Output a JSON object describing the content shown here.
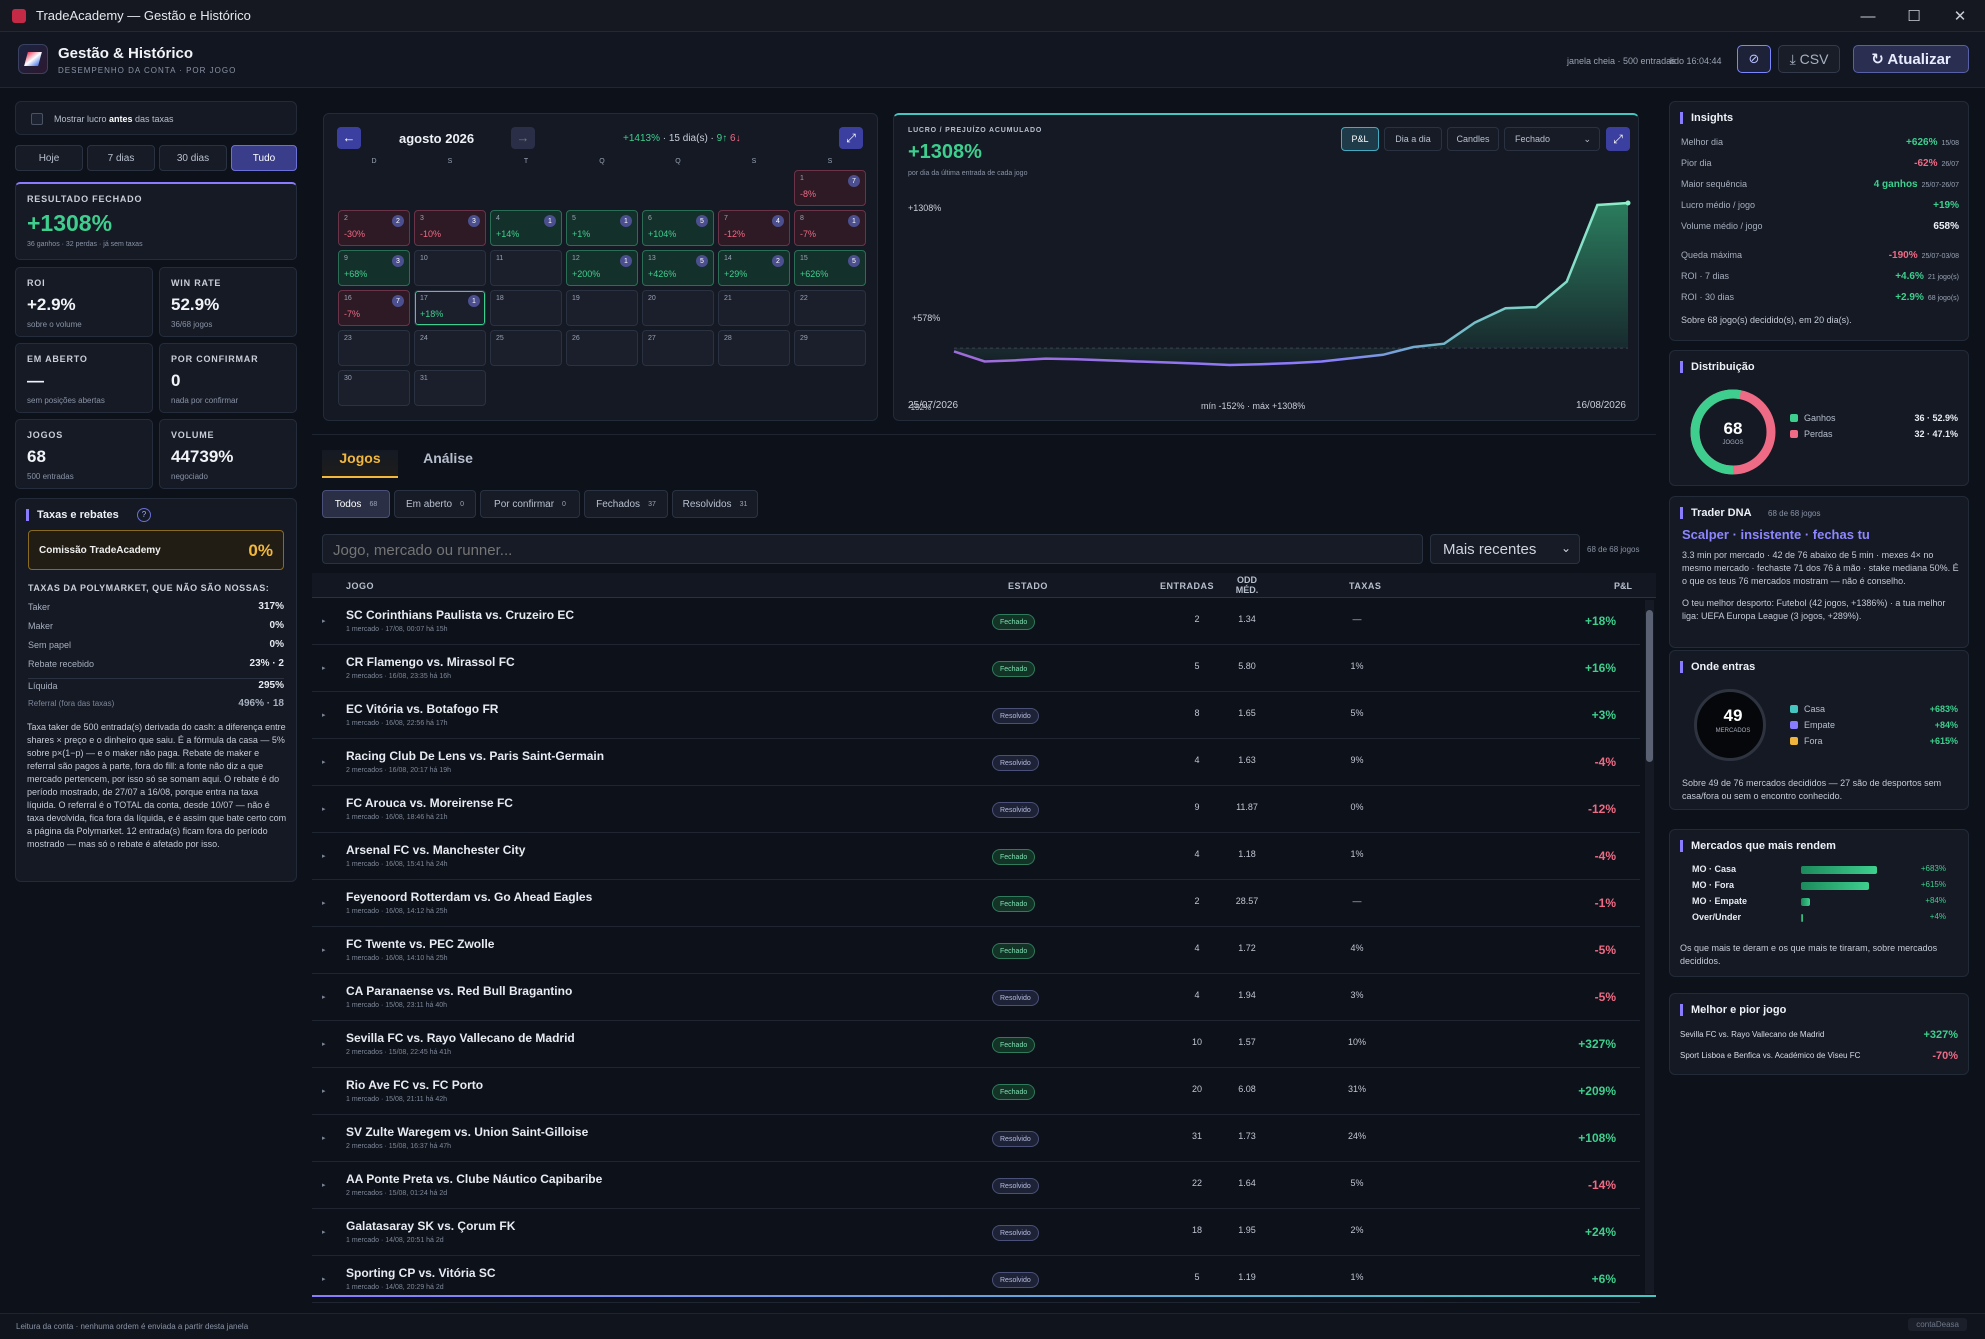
{
  "window": {
    "title": "TradeAcademy — Gestão e Histórico"
  },
  "header": {
    "title": "Gestão & Histórico",
    "subtitle": "DESEMPENHO DA CONTA · POR JOGO",
    "meta1": "janela cheia · 500 entradas",
    "meta2": "lido 16:04:44",
    "csv_label": "⤓ CSV",
    "refresh_label": "↻ Atualizar"
  },
  "left": {
    "toggle_label_pre": "Mostrar lucro ",
    "toggle_label_bold": "antes",
    "toggle_label_post": " das taxas",
    "periods": [
      "Hoje",
      "7 dias",
      "30 dias",
      "Tudo"
    ],
    "result": {
      "label": "RESULTADO FECHADO",
      "value": "+1308%",
      "sub": "36 ganhos · 32 perdas · já sem taxas"
    },
    "cards": [
      {
        "label": "ROI",
        "value": "+2.9%",
        "sub": "sobre o volume"
      },
      {
        "label": "WIN RATE",
        "value": "52.9%",
        "sub": "36/68 jogos"
      },
      {
        "label": "EM ABERTO",
        "value": "—",
        "sub": "sem posições abertas"
      },
      {
        "label": "POR CONFIRMAR",
        "value": "0",
        "sub": "nada por confirmar"
      },
      {
        "label": "JOGOS",
        "value": "68",
        "sub": "500 entradas"
      },
      {
        "label": "VOLUME",
        "value": "44739%",
        "sub": "negociado"
      }
    ],
    "fees": {
      "title": "Taxas e rebates",
      "commission_label": "Comissão TradeAcademy",
      "commission_value": "0%",
      "poly_title": "TAXAS DA POLYMARKET, QUE NÃO SÃO NOSSAS:",
      "rows": [
        {
          "k": "Taker",
          "v": "317%"
        },
        {
          "k": "Maker",
          "v": "0%"
        },
        {
          "k": "Sem papel",
          "v": "0%"
        },
        {
          "k": "Rebate recebido",
          "v": "23% · 2"
        }
      ],
      "liquida_k": "Líquida",
      "liquida_v": "295%",
      "referral_k": "Referral (fora das taxas)",
      "referral_v": "496% · 18",
      "text": "Taxa taker de 500 entrada(s) derivada do cash: a diferença entre shares × preço e o dinheiro que saiu. É a fórmula da casa — 5% sobre p×(1−p) — e o maker não paga. Rebate de maker e referral são pagos à parte, fora do fill: a fonte não diz a que mercado pertencem, por isso só se somam aqui. O rebate é do período mostrado, de 27/07 a 16/08, porque entra na taxa líquida. O referral é o TOTAL da conta, desde 10/07 — não é taxa devolvida, fica fora da líquida, e é assim que bate certo com a página da Polymarket. 12 entrada(s) ficam fora do período mostrado — mas só o rebate é afetado por isso."
    }
  },
  "calendar": {
    "month": "agosto 2026",
    "summary_pct": "+1413%",
    "summary_days": " · 15 dia(s) · ",
    "summary_w": "9↑",
    "summary_l": "6↓",
    "weekdays": [
      "D",
      "S",
      "T",
      "Q",
      "Q",
      "S",
      "S"
    ],
    "cells": [
      {
        "d": "1",
        "p": "-8%",
        "b": "7",
        "c": "r",
        "col": 6,
        "row": 0
      },
      {
        "d": "2",
        "p": "-30%",
        "b": "2",
        "c": "r",
        "col": 0,
        "row": 1
      },
      {
        "d": "3",
        "p": "-10%",
        "b": "3",
        "c": "r",
        "col": 1,
        "row": 1
      },
      {
        "d": "4",
        "p": "+14%",
        "b": "1",
        "c": "g",
        "col": 2,
        "row": 1
      },
      {
        "d": "5",
        "p": "+1%",
        "b": "1",
        "c": "g",
        "col": 3,
        "row": 1
      },
      {
        "d": "6",
        "p": "+104%",
        "b": "5",
        "c": "g",
        "col": 4,
        "row": 1
      },
      {
        "d": "7",
        "p": "-12%",
        "b": "4",
        "c": "r",
        "col": 5,
        "row": 1
      },
      {
        "d": "8",
        "p": "-7%",
        "b": "1",
        "c": "r",
        "col": 6,
        "row": 1
      },
      {
        "d": "9",
        "p": "+68%",
        "b": "3",
        "c": "g",
        "col": 0,
        "row": 2
      },
      {
        "d": "10",
        "p": "",
        "b": "",
        "c": "",
        "col": 1,
        "row": 2
      },
      {
        "d": "11",
        "p": "",
        "b": "",
        "c": "",
        "col": 2,
        "row": 2
      },
      {
        "d": "12",
        "p": "+200%",
        "b": "1",
        "c": "g",
        "col": 3,
        "row": 2
      },
      {
        "d": "13",
        "p": "+426%",
        "b": "5",
        "c": "g",
        "col": 4,
        "row": 2
      },
      {
        "d": "14",
        "p": "+29%",
        "b": "2",
        "c": "g",
        "col": 5,
        "row": 2
      },
      {
        "d": "15",
        "p": "+626%",
        "b": "5",
        "c": "g",
        "col": 6,
        "row": 2
      },
      {
        "d": "16",
        "p": "-7%",
        "b": "7",
        "c": "r",
        "col": 0,
        "row": 3
      },
      {
        "d": "17",
        "p": "+18%",
        "b": "1",
        "c": "t",
        "col": 1,
        "row": 3
      },
      {
        "d": "18",
        "p": "",
        "b": "",
        "c": "",
        "col": 2,
        "row": 3
      },
      {
        "d": "19",
        "p": "",
        "b": "",
        "c": "",
        "col": 3,
        "row": 3
      },
      {
        "d": "20",
        "p": "",
        "b": "",
        "c": "",
        "col": 4,
        "row": 3
      },
      {
        "d": "21",
        "p": "",
        "b": "",
        "c": "",
        "col": 5,
        "row": 3
      },
      {
        "d": "22",
        "p": "",
        "b": "",
        "c": "",
        "col": 6,
        "row": 3
      },
      {
        "d": "23",
        "p": "",
        "b": "",
        "c": "",
        "col": 0,
        "row": 4
      },
      {
        "d": "24",
        "p": "",
        "b": "",
        "c": "",
        "col": 1,
        "row": 4
      },
      {
        "d": "25",
        "p": "",
        "b": "",
        "c": "",
        "col": 2,
        "row": 4
      },
      {
        "d": "26",
        "p": "",
        "b": "",
        "c": "",
        "col": 3,
        "row": 4
      },
      {
        "d": "27",
        "p": "",
        "b": "",
        "c": "",
        "col": 4,
        "row": 4
      },
      {
        "d": "28",
        "p": "",
        "b": "",
        "c": "",
        "col": 5,
        "row": 4
      },
      {
        "d": "29",
        "p": "",
        "b": "",
        "c": "",
        "col": 6,
        "row": 4
      },
      {
        "d": "30",
        "p": "",
        "b": "",
        "c": "",
        "col": 0,
        "row": 5
      },
      {
        "d": "31",
        "p": "",
        "b": "",
        "c": "",
        "col": 1,
        "row": 5
      }
    ]
  },
  "pnl": {
    "title": "LUCRO / PREJUÍZO ACUMULADO",
    "value": "+1308%",
    "sub": "por dia da última entrada de cada jogo",
    "tabs": [
      "P&L",
      "Dia a dia",
      "Candles"
    ],
    "select": "Fechado",
    "y_top": "+1308%",
    "y_mid": "+578%",
    "y_bot": "-152%",
    "x_start": "25/07/2026",
    "x_end": "16/08/2026",
    "range": "mín -152% · máx +1308%"
  },
  "chart_data": {
    "type": "area",
    "title": "LUCRO / PREJUÍZO ACUMULADO",
    "x": [
      "25/07",
      "26/07",
      "27/07",
      "28/07",
      "29/07",
      "30/07",
      "31/07",
      "01/08",
      "02/08",
      "03/08",
      "04/08",
      "05/08",
      "06/08",
      "07/08",
      "08/08",
      "09/08",
      "10/08",
      "11/08",
      "12/08",
      "13/08",
      "14/08",
      "15/08",
      "16/08"
    ],
    "values": [
      -30,
      -120,
      -110,
      -95,
      -100,
      -110,
      -120,
      -130,
      -140,
      -152,
      -145,
      -135,
      -120,
      -90,
      -60,
      10,
      40,
      230,
      360,
      370,
      600,
      1290,
      1308
    ],
    "ylim": [
      -152,
      1308
    ]
  },
  "tabs": {
    "main": [
      {
        "label": "Jogos"
      },
      {
        "label": "Análise"
      }
    ],
    "filters": [
      {
        "label": "Todos",
        "count": "68"
      },
      {
        "label": "Em aberto",
        "count": "0"
      },
      {
        "label": "Por confirmar",
        "count": "0"
      },
      {
        "label": "Fechados",
        "count": "37"
      },
      {
        "label": "Resolvidos",
        "count": "31"
      }
    ]
  },
  "search": {
    "placeholder": "Jogo, mercado ou runner...",
    "sort": "Mais recentes",
    "count": "68 de 68 jogos"
  },
  "table": {
    "headers": {
      "jogo": "JOGO",
      "estado": "ESTADO",
      "entradas": "ENTRADAS",
      "odd1": "ODD",
      "odd2": "MÉD.",
      "taxas": "TAXAS",
      "pnl": "P&L"
    },
    "rows": [
      {
        "name": "SC Corinthians Paulista vs. Cruzeiro EC",
        "sub": "1 mercado · 17/08, 00:07 há 15h",
        "state": "Fechado",
        "entr": "2",
        "odd": "1.34",
        "tax": "—",
        "pl": "+18%"
      },
      {
        "name": "CR Flamengo vs. Mirassol FC",
        "sub": "2 mercados · 16/08, 23:35 há 16h",
        "state": "Fechado",
        "entr": "5",
        "odd": "5.80",
        "tax": "1%",
        "pl": "+16%"
      },
      {
        "name": "EC Vitória vs. Botafogo FR",
        "sub": "1 mercado · 16/08, 22:56 há 17h",
        "state": "Resolvido",
        "entr": "8",
        "odd": "1.65",
        "tax": "5%",
        "pl": "+3%"
      },
      {
        "name": "Racing Club De Lens vs. Paris Saint-Germain",
        "sub": "2 mercados · 16/08, 20:17 há 19h",
        "state": "Resolvido",
        "entr": "4",
        "odd": "1.63",
        "tax": "9%",
        "pl": "-4%"
      },
      {
        "name": "FC Arouca vs. Moreirense FC",
        "sub": "1 mercado · 16/08, 18:46 há 21h",
        "state": "Resolvido",
        "entr": "9",
        "odd": "11.87",
        "tax": "0%",
        "pl": "-12%"
      },
      {
        "name": "Arsenal FC vs. Manchester City",
        "sub": "1 mercado · 16/08, 15:41 há 24h",
        "state": "Fechado",
        "entr": "4",
        "odd": "1.18",
        "tax": "1%",
        "pl": "-4%"
      },
      {
        "name": "Feyenoord Rotterdam vs. Go Ahead Eagles",
        "sub": "1 mercado · 16/08, 14:12 há 25h",
        "state": "Fechado",
        "entr": "2",
        "odd": "28.57",
        "tax": "—",
        "pl": "-1%"
      },
      {
        "name": "FC Twente vs. PEC Zwolle",
        "sub": "1 mercado · 16/08, 14:10 há 25h",
        "state": "Fechado",
        "entr": "4",
        "odd": "1.72",
        "tax": "4%",
        "pl": "-5%"
      },
      {
        "name": "CA Paranaense vs. Red Bull Bragantino",
        "sub": "1 mercado · 15/08, 23:11 há 40h",
        "state": "Resolvido",
        "entr": "4",
        "odd": "1.94",
        "tax": "3%",
        "pl": "-5%"
      },
      {
        "name": "Sevilla FC vs. Rayo Vallecano de Madrid",
        "sub": "2 mercados · 15/08, 22:45 há 41h",
        "state": "Fechado",
        "entr": "10",
        "odd": "1.57",
        "tax": "10%",
        "pl": "+327%"
      },
      {
        "name": "Rio Ave FC vs. FC Porto",
        "sub": "1 mercado · 15/08, 21:11 há 42h",
        "state": "Fechado",
        "entr": "20",
        "odd": "6.08",
        "tax": "31%",
        "pl": "+209%"
      },
      {
        "name": "SV Zulte Waregem vs. Union Saint-Gilloise",
        "sub": "2 mercados · 15/08, 16:37 há 47h",
        "state": "Resolvido",
        "entr": "31",
        "odd": "1.73",
        "tax": "24%",
        "pl": "+108%"
      },
      {
        "name": "AA Ponte Preta vs. Clube Náutico Capibaribe",
        "sub": "2 mercados · 15/08, 01:24 há 2d",
        "state": "Resolvido",
        "entr": "22",
        "odd": "1.64",
        "tax": "5%",
        "pl": "-14%"
      },
      {
        "name": "Galatasaray SK vs. Çorum FK",
        "sub": "1 mercado · 14/08, 20:51 há 2d",
        "state": "Resolvido",
        "entr": "18",
        "odd": "1.95",
        "tax": "2%",
        "pl": "+24%"
      },
      {
        "name": "Sporting CP vs. Vitória SC",
        "sub": "1 mercado · 14/08, 20:29 há 2d",
        "state": "Resolvido",
        "entr": "5",
        "odd": "1.19",
        "tax": "1%",
        "pl": "+6%"
      }
    ]
  },
  "insights": {
    "title": "Insights",
    "rows": [
      {
        "k": "Melhor dia",
        "v": "+626%",
        "x": "15/08",
        "c": "g"
      },
      {
        "k": "Pior dia",
        "v": "-62%",
        "x": "26/07",
        "c": "r"
      },
      {
        "k": "Maior sequência",
        "v": "4 ganhos",
        "x": "25/07-26/07",
        "c": "g"
      },
      {
        "k": "Lucro médio / jogo",
        "v": "+19%",
        "x": "",
        "c": "g"
      },
      {
        "k": "Volume médio / jogo",
        "v": "658%",
        "x": "",
        "c": "w"
      },
      {
        "k": "Queda máxima",
        "v": "-190%",
        "x": "25/07-03/08",
        "c": "r"
      },
      {
        "k": "ROI · 7 dias",
        "v": "+4.6%",
        "x": "21 jogo(s)",
        "c": "g"
      },
      {
        "k": "ROI · 30 dias",
        "v": "+2.9%",
        "x": "68 jogo(s)",
        "c": "g"
      }
    ],
    "footer": "Sobre 68 jogo(s) decidido(s), em 20 dia(s)."
  },
  "distribution": {
    "title": "Distribuição",
    "center_value": "68",
    "center_label": "JOGOS",
    "won": 36,
    "lost": 32,
    "items": [
      {
        "label": "Ganhos",
        "value": "36 · 52.9%",
        "color": "#3ecf8e"
      },
      {
        "label": "Perdas",
        "value": "32 · 47.1%",
        "color": "#ef6a85"
      }
    ]
  },
  "dna": {
    "title": "Trader DNA",
    "count": "68 de 68 jogos",
    "headline": "Scalper · insistente · fechas tu",
    "text1": "3.3 min por mercado · 42 de 76 abaixo de 5 min · mexes 4× no mesmo mercado · fechaste 71 dos 76 à mão · stake mediana 50%. É o que os teus 76 mercados mostram — não é conselho.",
    "text2": "O teu melhor desporto: Futebol (42 jogos, +1386%) · a tua melhor liga: UEFA Europa League (3 jogos, +289%)."
  },
  "where": {
    "title": "Onde entras",
    "center_value": "49",
    "center_label": "MERCADOS",
    "items": [
      {
        "label": "Casa",
        "value": "+683%",
        "color": "#45c6c0"
      },
      {
        "label": "Empate",
        "value": "+84%",
        "color": "#8a7cff"
      },
      {
        "label": "Fora",
        "value": "+615%",
        "color": "#f0b43c"
      }
    ],
    "text": "Sobre 49 de 76 mercados decididos — 27 são de desportos sem casa/fora ou sem o encontro conhecido."
  },
  "markets": {
    "title": "Mercados que mais rendem",
    "rows": [
      {
        "k": "MO · Casa",
        "v": "+683%",
        "f": 1.0
      },
      {
        "k": "MO · Fora",
        "v": "+615%",
        "f": 0.9
      },
      {
        "k": "MO · Empate",
        "v": "+84%",
        "f": 0.12
      },
      {
        "k": "Over/Under",
        "v": "+4%",
        "f": 0.02
      }
    ],
    "text": "Os que mais te deram e os que mais te tiraram, sobre mercados decididos."
  },
  "bestworst": {
    "title": "Melhor e pior jogo",
    "rows": [
      {
        "k": "Sevilla FC vs. Rayo Vallecano de Madrid",
        "v": "+327%",
        "c": "g"
      },
      {
        "k": "Sport Lisboa e Benfica vs. Académico de Viseu FC",
        "v": "-70%",
        "c": "r"
      }
    ]
  },
  "footer": {
    "text": "Leitura da conta · nenhuma ordem é enviada a partir desta janela",
    "brand": "contaDeasa"
  }
}
